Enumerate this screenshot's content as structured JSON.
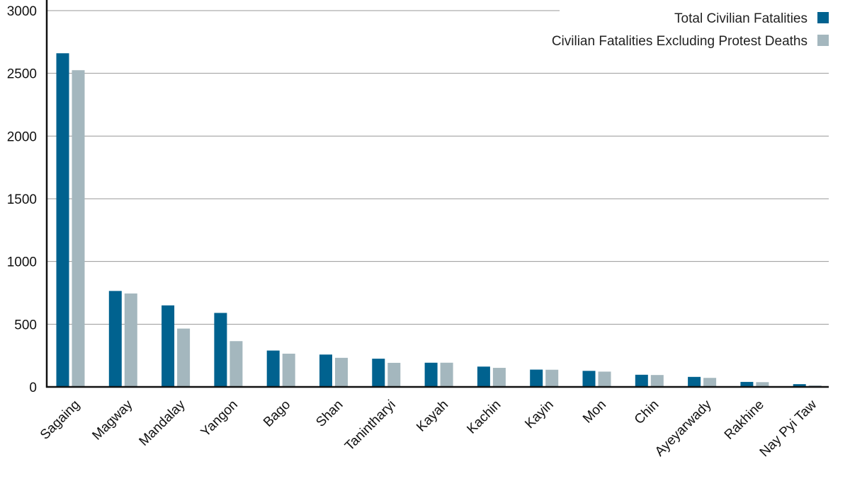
{
  "chart_data": {
    "type": "bar",
    "title": "",
    "xlabel": "",
    "ylabel": "",
    "ylim": [
      0,
      3000
    ],
    "yticks": [
      0,
      500,
      1000,
      1500,
      2000,
      2500,
      3000
    ],
    "grid": true,
    "legend_position": "top-right",
    "categories": [
      "Sagaing",
      "Magway",
      "Mandalay",
      "Yangon",
      "Bago",
      "Shan",
      "Tanintharyi",
      "Kayah",
      "Kachin",
      "Kayin",
      "Mon",
      "Chin",
      "Ayeyarwady",
      "Rakhine",
      "Nay Pyi Taw"
    ],
    "series": [
      {
        "name": "Total Civilian Fatalities",
        "color": "#00628f",
        "values": [
          2660,
          765,
          650,
          590,
          290,
          258,
          225,
          193,
          162,
          138,
          128,
          97,
          80,
          40,
          22
        ]
      },
      {
        "name": "Civilian Fatalities Excluding Protest Deaths",
        "color": "#a4b7be",
        "values": [
          2525,
          745,
          465,
          365,
          265,
          232,
          192,
          193,
          152,
          137,
          122,
          95,
          72,
          38,
          12
        ]
      }
    ]
  }
}
